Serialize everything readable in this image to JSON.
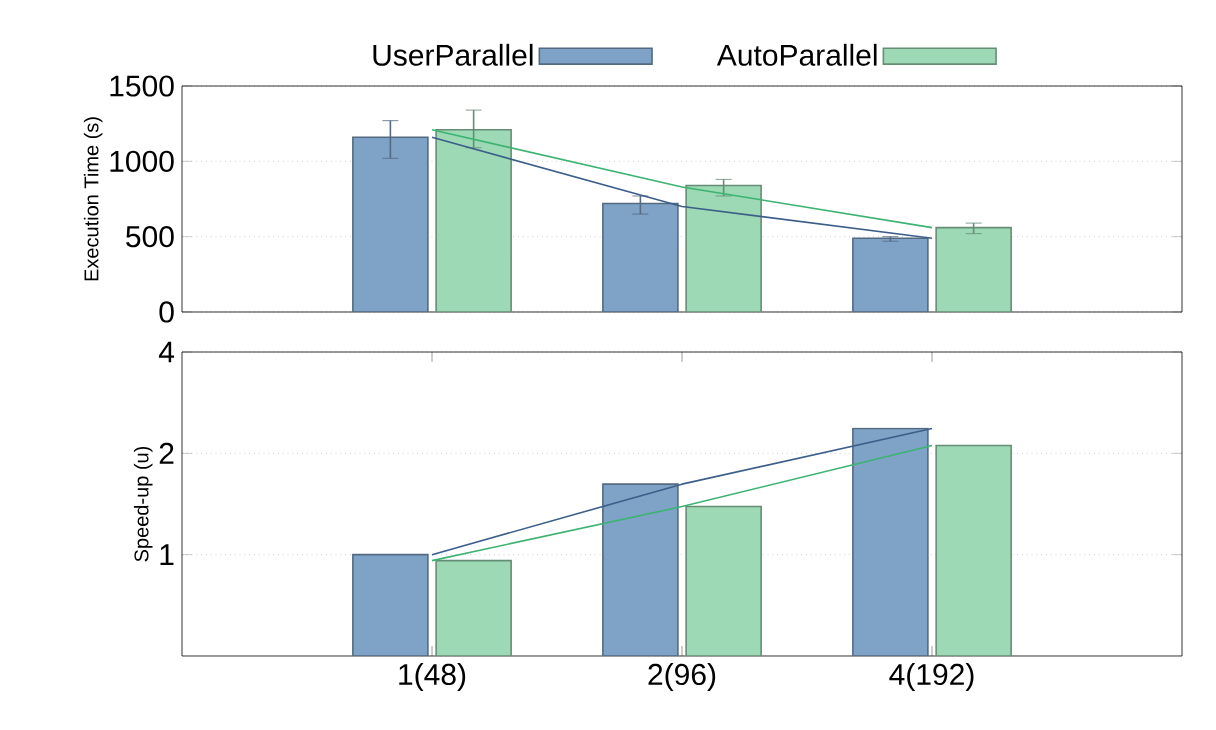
{
  "chart_data": [
    {
      "type": "bar",
      "ylabel": "Execution Time (s)",
      "categories": [
        null,
        null,
        null
      ],
      "ylim": [
        0,
        1500
      ],
      "yticks": [
        0,
        500,
        1000,
        1500
      ],
      "grid": "y",
      "legend": "top",
      "tick_labels": "y",
      "series": [
        {
          "name": "UserParallel",
          "color": "#7fa3c6",
          "values": [
            1160,
            720,
            490
          ],
          "errors": [
            [
              1020,
              1270
            ],
            [
              650,
              770
            ],
            [
              470,
              500
            ]
          ]
        },
        {
          "name": "AutoParallel",
          "color": "#9dd9b5",
          "values": [
            1210,
            840,
            560
          ],
          "errors": [
            [
              1090,
              1340
            ],
            [
              770,
              880
            ],
            [
              520,
              590
            ]
          ]
        },
        {
          "type": "line",
          "color": "#3c5f8a",
          "values": [
            1160,
            700,
            490
          ]
        },
        {
          "type": "line",
          "color": "#3cb371",
          "values": [
            1210,
            830,
            560
          ]
        }
      ]
    },
    {
      "type": "bar",
      "ylabel": "Speed-up (u)",
      "categories": [
        "1(48)",
        "2(96)",
        "4(192)"
      ],
      "log": "y",
      "ylim": [
        0.5,
        4
      ],
      "yticks": [
        1,
        2,
        4
      ],
      "grid": "y",
      "series": [
        {
          "color": "#7fa3c6",
          "values": [
            1,
            1.62,
            2.37
          ]
        },
        {
          "color": "#9dd9b5",
          "values": [
            0.96,
            1.39,
            2.11
          ]
        },
        {
          "type": "line",
          "color": "#3c5f8a",
          "values": [
            1,
            1.62,
            2.37
          ]
        },
        {
          "type": "line",
          "color": "#3cb371",
          "values": [
            0.96,
            1.39,
            2.11
          ]
        }
      ]
    }
  ]
}
